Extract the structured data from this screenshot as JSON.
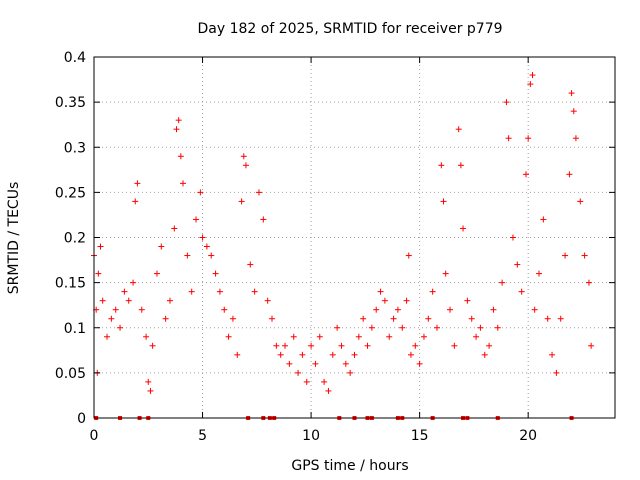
{
  "chart_data": {
    "type": "scatter",
    "title": "Day 182 of 2025, SRMTID for receiver p779",
    "xlabel": "GPS time / hours",
    "ylabel": "SRMTID / TECUs",
    "xlim": [
      0,
      24
    ],
    "ylim": [
      0,
      0.4
    ],
    "x_ticks": [
      0,
      5,
      10,
      15,
      20
    ],
    "x_tick_labels": [
      "0",
      "5",
      "10",
      "15",
      "20"
    ],
    "y_ticks": [
      0,
      0.05,
      0.1,
      0.15,
      0.2,
      0.25,
      0.3,
      0.35,
      0.4
    ],
    "y_tick_labels": [
      "0",
      "0.05",
      "0.1",
      "0.15",
      "0.2",
      "0.25",
      "0.3",
      "0.35",
      "0.4"
    ],
    "grid": true,
    "marker": "+",
    "color": "#ff0000",
    "series": [
      {
        "name": "SRMTID",
        "description_points": [
          {
            "x": 0.0,
            "y": 0.18
          },
          {
            "x": 0.1,
            "y": 0.12
          },
          {
            "x": 0.15,
            "y": 0.05
          },
          {
            "x": 0.2,
            "y": 0.16
          },
          {
            "x": 0.3,
            "y": 0.19
          },
          {
            "x": 0.4,
            "y": 0.13
          },
          {
            "x": 0.6,
            "y": 0.09
          },
          {
            "x": 0.8,
            "y": 0.11
          },
          {
            "x": 1.0,
            "y": 0.12
          },
          {
            "x": 1.2,
            "y": 0.1
          },
          {
            "x": 1.4,
            "y": 0.14
          },
          {
            "x": 1.6,
            "y": 0.13
          },
          {
            "x": 1.8,
            "y": 0.15
          },
          {
            "x": 1.9,
            "y": 0.24
          },
          {
            "x": 2.0,
            "y": 0.26
          },
          {
            "x": 2.2,
            "y": 0.12
          },
          {
            "x": 2.4,
            "y": 0.09
          },
          {
            "x": 2.5,
            "y": 0.04
          },
          {
            "x": 2.6,
            "y": 0.03
          },
          {
            "x": 2.7,
            "y": 0.08
          },
          {
            "x": 2.9,
            "y": 0.16
          },
          {
            "x": 3.1,
            "y": 0.19
          },
          {
            "x": 3.3,
            "y": 0.11
          },
          {
            "x": 3.5,
            "y": 0.13
          },
          {
            "x": 3.7,
            "y": 0.21
          },
          {
            "x": 3.8,
            "y": 0.32
          },
          {
            "x": 3.9,
            "y": 0.33
          },
          {
            "x": 4.0,
            "y": 0.29
          },
          {
            "x": 4.1,
            "y": 0.26
          },
          {
            "x": 4.3,
            "y": 0.18
          },
          {
            "x": 4.5,
            "y": 0.14
          },
          {
            "x": 4.7,
            "y": 0.22
          },
          {
            "x": 4.9,
            "y": 0.25
          },
          {
            "x": 5.0,
            "y": 0.2
          },
          {
            "x": 5.2,
            "y": 0.19
          },
          {
            "x": 5.4,
            "y": 0.18
          },
          {
            "x": 5.6,
            "y": 0.16
          },
          {
            "x": 5.8,
            "y": 0.14
          },
          {
            "x": 6.0,
            "y": 0.12
          },
          {
            "x": 6.2,
            "y": 0.09
          },
          {
            "x": 6.4,
            "y": 0.11
          },
          {
            "x": 6.6,
            "y": 0.07
          },
          {
            "x": 6.8,
            "y": 0.24
          },
          {
            "x": 6.9,
            "y": 0.29
          },
          {
            "x": 7.0,
            "y": 0.28
          },
          {
            "x": 7.2,
            "y": 0.17
          },
          {
            "x": 7.4,
            "y": 0.14
          },
          {
            "x": 7.6,
            "y": 0.25
          },
          {
            "x": 7.8,
            "y": 0.22
          },
          {
            "x": 8.0,
            "y": 0.13
          },
          {
            "x": 8.2,
            "y": 0.11
          },
          {
            "x": 8.4,
            "y": 0.08
          },
          {
            "x": 8.6,
            "y": 0.07
          },
          {
            "x": 8.8,
            "y": 0.08
          },
          {
            "x": 9.0,
            "y": 0.06
          },
          {
            "x": 9.2,
            "y": 0.09
          },
          {
            "x": 9.4,
            "y": 0.05
          },
          {
            "x": 9.6,
            "y": 0.07
          },
          {
            "x": 9.8,
            "y": 0.04
          },
          {
            "x": 10.0,
            "y": 0.08
          },
          {
            "x": 10.2,
            "y": 0.06
          },
          {
            "x": 10.4,
            "y": 0.09
          },
          {
            "x": 10.6,
            "y": 0.04
          },
          {
            "x": 10.8,
            "y": 0.03
          },
          {
            "x": 11.0,
            "y": 0.07
          },
          {
            "x": 11.2,
            "y": 0.1
          },
          {
            "x": 11.4,
            "y": 0.08
          },
          {
            "x": 11.6,
            "y": 0.06
          },
          {
            "x": 11.8,
            "y": 0.05
          },
          {
            "x": 12.0,
            "y": 0.07
          },
          {
            "x": 12.2,
            "y": 0.09
          },
          {
            "x": 12.4,
            "y": 0.11
          },
          {
            "x": 12.6,
            "y": 0.08
          },
          {
            "x": 12.8,
            "y": 0.1
          },
          {
            "x": 13.0,
            "y": 0.12
          },
          {
            "x": 13.2,
            "y": 0.14
          },
          {
            "x": 13.4,
            "y": 0.13
          },
          {
            "x": 13.6,
            "y": 0.09
          },
          {
            "x": 13.8,
            "y": 0.11
          },
          {
            "x": 14.0,
            "y": 0.12
          },
          {
            "x": 14.2,
            "y": 0.1
          },
          {
            "x": 14.4,
            "y": 0.13
          },
          {
            "x": 14.5,
            "y": 0.18
          },
          {
            "x": 14.6,
            "y": 0.07
          },
          {
            "x": 14.8,
            "y": 0.08
          },
          {
            "x": 15.0,
            "y": 0.06
          },
          {
            "x": 15.2,
            "y": 0.09
          },
          {
            "x": 15.4,
            "y": 0.11
          },
          {
            "x": 15.6,
            "y": 0.14
          },
          {
            "x": 15.8,
            "y": 0.1
          },
          {
            "x": 16.0,
            "y": 0.28
          },
          {
            "x": 16.1,
            "y": 0.24
          },
          {
            "x": 16.2,
            "y": 0.16
          },
          {
            "x": 16.4,
            "y": 0.12
          },
          {
            "x": 16.6,
            "y": 0.08
          },
          {
            "x": 16.8,
            "y": 0.32
          },
          {
            "x": 16.9,
            "y": 0.28
          },
          {
            "x": 17.0,
            "y": 0.21
          },
          {
            "x": 17.2,
            "y": 0.13
          },
          {
            "x": 17.4,
            "y": 0.11
          },
          {
            "x": 17.6,
            "y": 0.09
          },
          {
            "x": 17.8,
            "y": 0.1
          },
          {
            "x": 18.0,
            "y": 0.07
          },
          {
            "x": 18.2,
            "y": 0.08
          },
          {
            "x": 18.4,
            "y": 0.12
          },
          {
            "x": 18.6,
            "y": 0.1
          },
          {
            "x": 18.8,
            "y": 0.15
          },
          {
            "x": 19.0,
            "y": 0.35
          },
          {
            "x": 19.1,
            "y": 0.31
          },
          {
            "x": 19.3,
            "y": 0.2
          },
          {
            "x": 19.5,
            "y": 0.17
          },
          {
            "x": 19.7,
            "y": 0.14
          },
          {
            "x": 19.9,
            "y": 0.27
          },
          {
            "x": 20.0,
            "y": 0.31
          },
          {
            "x": 20.1,
            "y": 0.37
          },
          {
            "x": 20.2,
            "y": 0.38
          },
          {
            "x": 20.3,
            "y": 0.12
          },
          {
            "x": 20.5,
            "y": 0.16
          },
          {
            "x": 20.7,
            "y": 0.22
          },
          {
            "x": 20.9,
            "y": 0.11
          },
          {
            "x": 21.1,
            "y": 0.07
          },
          {
            "x": 21.3,
            "y": 0.05
          },
          {
            "x": 21.5,
            "y": 0.11
          },
          {
            "x": 21.7,
            "y": 0.18
          },
          {
            "x": 21.9,
            "y": 0.27
          },
          {
            "x": 22.0,
            "y": 0.36
          },
          {
            "x": 22.1,
            "y": 0.34
          },
          {
            "x": 22.2,
            "y": 0.31
          },
          {
            "x": 22.4,
            "y": 0.24
          },
          {
            "x": 22.6,
            "y": 0.18
          },
          {
            "x": 22.8,
            "y": 0.15
          },
          {
            "x": 22.9,
            "y": 0.08
          }
        ],
        "zero_points_x": [
          0.1,
          1.2,
          2.1,
          2.5,
          7.1,
          7.8,
          8.1,
          8.3,
          11.3,
          12.0,
          12.6,
          12.8,
          14.0,
          14.2,
          15.6,
          17.0,
          17.2,
          18.6,
          22.0
        ]
      }
    ]
  }
}
